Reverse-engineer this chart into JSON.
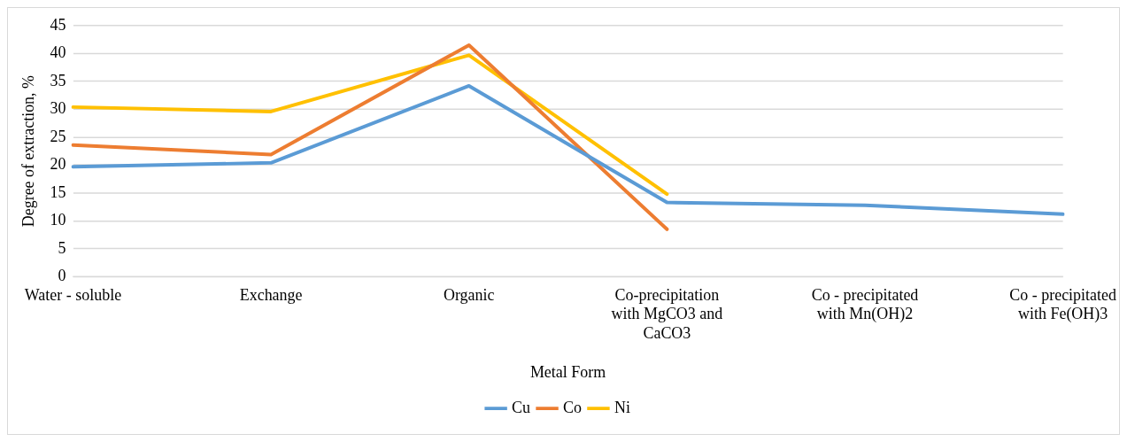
{
  "chart_data": {
    "type": "line",
    "xlabel": "Metal Form",
    "ylabel": "Degree of extraction, %",
    "categories": [
      "Water - soluble",
      "Exchange",
      "Organic",
      "Co-precipitation with MgCO3 and CaCO3",
      "Co - precipitated with Mn(OH)2",
      "Co - precipitated with Fe(OH)3"
    ],
    "series": [
      {
        "name": "Cu",
        "color": "#5b9bd5",
        "values": [
          19.7,
          20.4,
          34.2,
          13.3,
          12.8,
          11.2
        ]
      },
      {
        "name": "Co",
        "color": "#ed7d31",
        "values": [
          23.6,
          21.9,
          41.5,
          8.5,
          null,
          null
        ]
      },
      {
        "name": "Ni",
        "color": "#ffc000",
        "values": [
          30.4,
          29.6,
          39.7,
          14.8,
          null,
          null
        ]
      }
    ],
    "ylim": [
      0,
      45
    ],
    "yticks": [
      0,
      5,
      10,
      15,
      20,
      25,
      30,
      35,
      40,
      45
    ],
    "grid": "y",
    "legend": "bottom",
    "marker": "none",
    "line_style": "solid"
  }
}
